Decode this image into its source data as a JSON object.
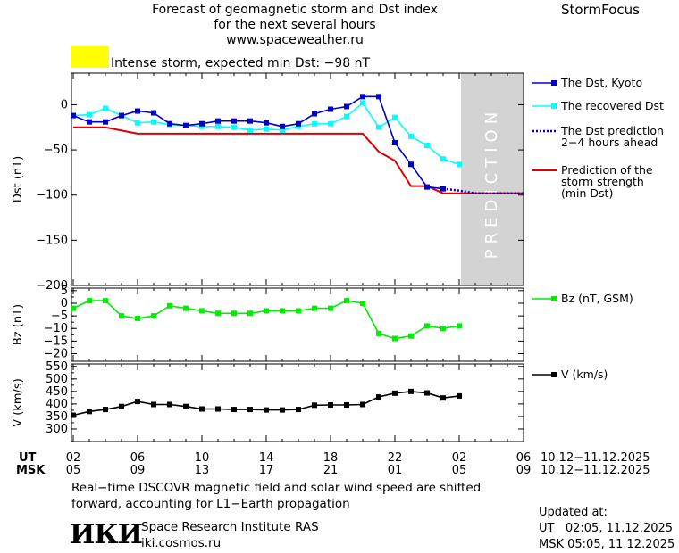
{
  "header": {
    "title_line1": "Forecast of geomagnetic storm and Dst index",
    "title_line2": "for the next several hours",
    "url": "www.spaceweather.ru",
    "brand": "StormFocus",
    "storm_label": "Intense storm, expected min Dst: −98 nT",
    "storm_color": "#ffff00"
  },
  "prediction_label": "PREDICTION",
  "time_axis": {
    "ut_label": "UT",
    "msk_label": "MSK",
    "ut_ticks": [
      "02",
      "06",
      "10",
      "14",
      "18",
      "22",
      "02",
      "06"
    ],
    "msk_ticks": [
      "05",
      "09",
      "13",
      "17",
      "21",
      "01",
      "05",
      "09"
    ],
    "ut_date_range": "10.12−11.12.2025",
    "msk_date_range": "10.12−11.12.2025"
  },
  "chart_data": [
    {
      "type": "line",
      "ylabel": "Dst (nT)",
      "ylim": [
        -200,
        35
      ],
      "yticks": [
        "0",
        "−50",
        "−100",
        "−150",
        "−200"
      ],
      "ytick_values": [
        0,
        -50,
        -100,
        -150,
        -200
      ],
      "x_hours": [
        0,
        1,
        2,
        3,
        4,
        5,
        6,
        7,
        8,
        9,
        10,
        11,
        12,
        13,
        14,
        15,
        16,
        17,
        18,
        19,
        20,
        21,
        22,
        23,
        24,
        25
      ],
      "xlim": [
        0,
        28
      ],
      "prediction_range": [
        24,
        28
      ],
      "series": [
        {
          "name": "The Dst, Kyoto",
          "color": "#0000cc",
          "style": "line-square",
          "values": [
            -12,
            -19,
            -19,
            -12,
            -7,
            -9,
            -21,
            -23,
            -21,
            -18,
            -18,
            -18,
            -20,
            -24,
            -21,
            -10,
            -5,
            -2,
            9,
            9,
            -42,
            -66,
            -91,
            -93
          ]
        },
        {
          "name": "The recovered Dst",
          "color": "#00ffff",
          "style": "line-square",
          "values": [
            -12,
            -11,
            -4,
            -12,
            -20,
            -19,
            -22,
            -23,
            -24,
            -24,
            -25,
            -28,
            -27,
            -28,
            -24,
            -21,
            -21,
            -13,
            2,
            -25,
            -14,
            -35,
            -45,
            -60,
            -66
          ]
        },
        {
          "name": "The Dst prediction\n2−4 hours ahead",
          "color": "#0000cc",
          "style": "dotted",
          "values_x": [
            23,
            24,
            25,
            26,
            27,
            28
          ],
          "values": [
            -93,
            -95,
            -98,
            -98,
            -98,
            -98
          ]
        },
        {
          "name": "Prediction of the\nstorm strength\n(min Dst)",
          "color": "#dd0000",
          "style": "step",
          "points": [
            [
              0,
              -25
            ],
            [
              2,
              -25
            ],
            [
              4,
              -32
            ],
            [
              18,
              -32
            ],
            [
              19,
              -52
            ],
            [
              20,
              -62
            ],
            [
              21,
              -90
            ],
            [
              22,
              -90
            ],
            [
              23,
              -98
            ],
            [
              28,
              -98
            ]
          ]
        }
      ]
    },
    {
      "type": "line",
      "ylabel": "Bz (nT)",
      "ylim": [
        -23,
        6
      ],
      "yticks": [
        "5",
        "0",
        "−5",
        "−10",
        "−15",
        "−20"
      ],
      "ytick_values": [
        5,
        0,
        -5,
        -10,
        -15,
        -20
      ],
      "series": [
        {
          "name": "Bz (nT, GSM)",
          "color": "#00ee00",
          "style": "line-square",
          "x_hours": [
            0,
            1,
            2,
            3,
            4,
            5,
            6,
            7,
            8,
            9,
            10,
            11,
            12,
            13,
            14,
            15,
            16,
            17,
            18,
            19,
            20,
            21,
            22,
            23,
            24
          ],
          "values": [
            -2,
            1,
            1,
            -5,
            -6,
            -5,
            -1,
            -2,
            -3,
            -4,
            -4,
            -4,
            -3,
            -3,
            -3,
            -2,
            -2,
            1,
            0,
            -12,
            -14,
            -13,
            -9,
            -10,
            -9
          ]
        }
      ]
    },
    {
      "type": "line",
      "ylabel": "V (km/s)",
      "ylim": [
        250,
        560
      ],
      "yticks": [
        "550",
        "500",
        "450",
        "400",
        "350",
        "300"
      ],
      "ytick_values": [
        550,
        500,
        450,
        400,
        350,
        300
      ],
      "series": [
        {
          "name": "V (km/s)",
          "color": "#000000",
          "style": "line-square",
          "x_hours": [
            0,
            1,
            2,
            3,
            4,
            5,
            6,
            7,
            8,
            9,
            10,
            11,
            12,
            13,
            14,
            15,
            16,
            17,
            18,
            19,
            20,
            21,
            22,
            23,
            24
          ],
          "values": [
            355,
            370,
            378,
            390,
            410,
            398,
            398,
            390,
            380,
            380,
            378,
            378,
            376,
            376,
            378,
            395,
            396,
            396,
            398,
            428,
            443,
            450,
            444,
            424,
            432
          ]
        }
      ]
    }
  ],
  "footer": {
    "note_line1": "Real−time DSCOVR magnetic field and solar wind speed are shifted",
    "note_line2": "forward, accounting for L1−Earth propagation",
    "logo_text": "ИКИ",
    "institute": "Space Research Institute RAS",
    "site": "iki.cosmos.ru",
    "updated_label": "Updated at:",
    "updated_ut": "UT   02:05, 11.12.2025",
    "updated_msk": "MSK 05:05, 11.12.2025"
  }
}
